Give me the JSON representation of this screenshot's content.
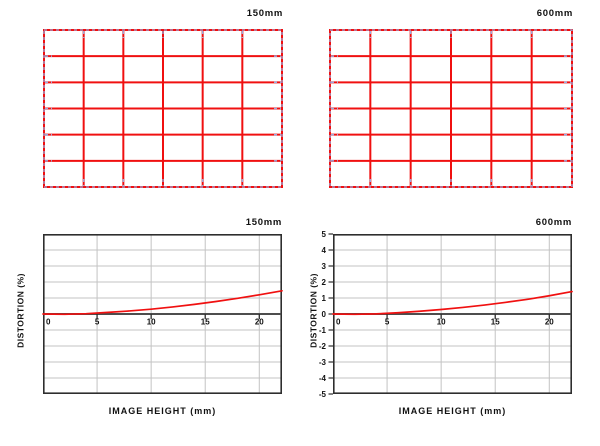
{
  "figure": {
    "kind": "lens-distortion-figure"
  },
  "colors": {
    "red": "#f01010",
    "ideal_dash_blue": "#98abdf",
    "grid_line_gray": "#c3c3c3",
    "axis_border": "#2e2e2e",
    "zero_line": "#4d4d4d",
    "text": "#111111",
    "background": "#ffffff"
  },
  "distortion_grids": [
    {
      "label": "150mm",
      "cols": 6,
      "rows": 6
    },
    {
      "label": "600mm",
      "cols": 6,
      "rows": 6
    }
  ],
  "chart_data": [
    {
      "type": "line",
      "title": "150mm",
      "xlabel": "IMAGE HEIGHT (mm)",
      "ylabel": "DISTORTION (%)",
      "xlim": [
        0,
        22.1
      ],
      "ylim": [
        -5,
        5
      ],
      "x_ticks": [
        0,
        5,
        10,
        15,
        20
      ],
      "y_ticks": [],
      "grid": true,
      "series": [
        {
          "name": "distortion",
          "x": [
            0,
            2,
            4,
            6,
            8,
            10,
            12,
            14,
            16,
            18,
            20,
            22.1
          ],
          "y": [
            0,
            -0.02,
            0.02,
            0.1,
            0.19,
            0.3,
            0.44,
            0.6,
            0.78,
            0.98,
            1.2,
            1.45
          ]
        }
      ]
    },
    {
      "type": "line",
      "title": "600mm",
      "xlabel": "IMAGE HEIGHT (mm)",
      "ylabel": "DISTORTION (%)",
      "xlim": [
        0,
        22.1
      ],
      "ylim": [
        -5,
        5
      ],
      "x_ticks": [
        0,
        5,
        10,
        15,
        20
      ],
      "y_ticks": [
        5,
        4,
        3,
        2,
        1,
        0,
        -1,
        -2,
        -3,
        -4,
        -5
      ],
      "grid": true,
      "series": [
        {
          "name": "distortion",
          "x": [
            0,
            2,
            4,
            6,
            8,
            10,
            12,
            14,
            16,
            18,
            20,
            22.1
          ],
          "y": [
            0,
            -0.02,
            0.01,
            0.08,
            0.17,
            0.28,
            0.41,
            0.56,
            0.73,
            0.92,
            1.14,
            1.4
          ]
        }
      ]
    }
  ]
}
